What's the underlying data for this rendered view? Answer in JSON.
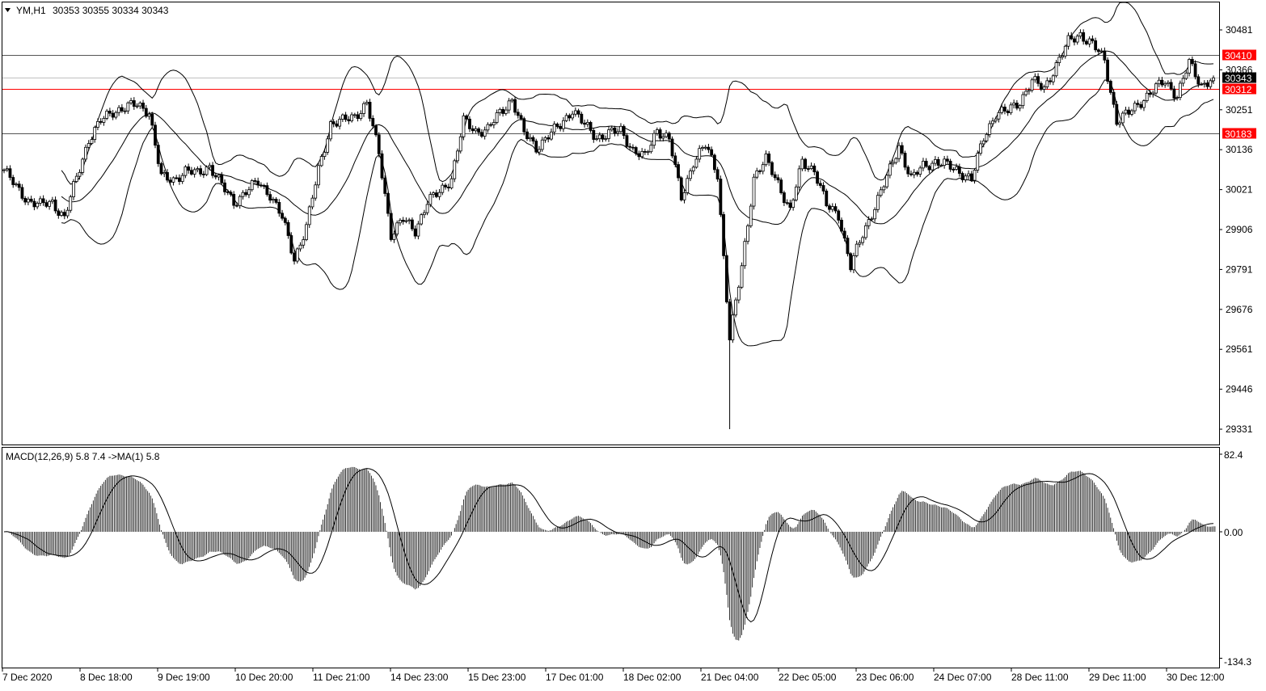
{
  "header": {
    "symbol": "YM,H1",
    "ohlc": "30353 30355 30334 30343"
  },
  "macd_label": "MACD(12,26,9) 5.8 7.4  ->MA(1) 5.8",
  "colors": {
    "background": "#ffffff",
    "foreground": "#000000",
    "level_label": "#ff0000",
    "current_price_label": "#000000",
    "red_line": "#ff0000"
  },
  "chart_data": {
    "type": "candlestick",
    "symbol": "YM",
    "timeframe": "H1",
    "indicators": [
      "Bollinger Bands (20)",
      "MACD(12,26,9)"
    ],
    "ylim": [
      29331,
      30520
    ],
    "price_ticks": [
      "30481",
      "30366",
      "30251",
      "30136",
      "30021",
      "29906",
      "29791",
      "29676",
      "29561",
      "29446",
      "29331"
    ],
    "time_ticks": [
      "7 Dec 2020",
      "8 Dec 18:00",
      "9 Dec 19:00",
      "10 Dec 20:00",
      "11 Dec 21:00",
      "14 Dec 23:00",
      "15 Dec 23:00",
      "17 Dec 01:00",
      "18 Dec 02:00",
      "21 Dec 04:00",
      "22 Dec 05:00",
      "23 Dec 06:00",
      "24 Dec 07:00",
      "28 Dec 11:00",
      "29 Dec 11:00",
      "30 Dec 12:00"
    ],
    "closes": [
      30078,
      30027,
      29990,
      29976,
      29985,
      29939,
      30055,
      30166,
      30218,
      30246,
      30258,
      30265,
      30246,
      30055,
      30050,
      30074,
      30067,
      30090,
      30032,
      29985,
      30015,
      30043,
      30008,
      29939,
      29822,
      29915,
      30078,
      30211,
      30218,
      30234,
      30269,
      30125,
      29892,
      29934,
      29904,
      29985,
      30013,
      30055,
      30218,
      30190,
      30195,
      30241,
      30283,
      30183,
      30143,
      30176,
      30206,
      30253,
      30206,
      30171,
      30183,
      30190,
      30136,
      30113,
      30195,
      30166,
      29997,
      30102,
      30148,
      30067,
      29590,
      29799,
      30055,
      30106,
      30043,
      29957,
      30102,
      30078,
      29974,
      29950,
      29799,
      29892,
      29974,
      30055,
      30148,
      30050,
      30090,
      30102,
      30090,
      30074,
      30050,
      30171,
      30241,
      30246,
      30276,
      30334,
      30311,
      30381,
      30446,
      30469,
      30439,
      30393,
      30218,
      30241,
      30276,
      30306,
      30334,
      30292,
      30385,
      30322,
      30343
    ],
    "notable_low": {
      "index": 60,
      "low": 29331
    },
    "levels": [
      {
        "price": "30410",
        "line": "#555555",
        "label_bg": "#ff0000"
      },
      {
        "price": "30343",
        "line": "#c0c0c0",
        "label_bg": "#000000"
      },
      {
        "price": "30312",
        "line": "#ff0000",
        "label_bg": "#ff0000"
      },
      {
        "price": "30183",
        "line": "#555555",
        "label_bg": "#ff0000"
      }
    ],
    "macd": {
      "max_label": "82.4",
      "zero_label": "0.00",
      "min_label": "-134.3",
      "range": [
        -134.3,
        82.4
      ]
    }
  }
}
